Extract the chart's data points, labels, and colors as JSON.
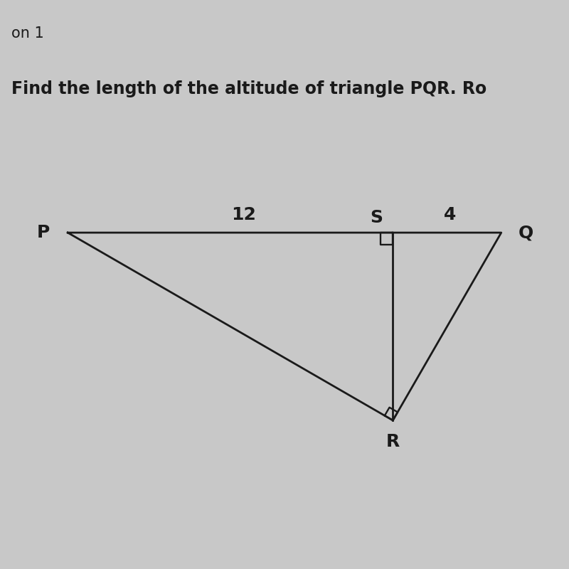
{
  "title": "Find the length of the altitude of triangle PQR. Ro",
  "header": "on 1",
  "PS": 12,
  "SQ": 4,
  "bg_color_top": "#c8c8c8",
  "bg_color_main": "#dde0e8",
  "line_color": "#1a1a1a",
  "text_color": "#1a1a1a",
  "label_P": "P",
  "label_Q": "Q",
  "label_R": "R",
  "label_S": "S",
  "label_12": "12",
  "label_4": "4",
  "title_fontsize": 17,
  "header_fontsize": 15,
  "label_fontsize": 18
}
